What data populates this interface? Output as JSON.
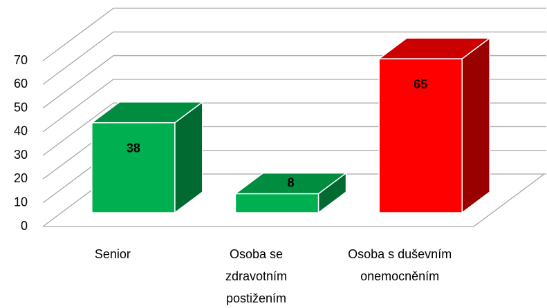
{
  "chart_data": {
    "type": "bar",
    "categories": [
      "Senior",
      "Osoba se zdravotním postižením",
      "Osoba s duševním onemocněním"
    ],
    "values": [
      38,
      8,
      65
    ],
    "colors": [
      "#00b050",
      "#00b050",
      "#ff0000"
    ],
    "ylim": [
      0,
      70
    ],
    "yticks": [
      0,
      10,
      20,
      30,
      40,
      50,
      60,
      70
    ],
    "grid": true
  }
}
